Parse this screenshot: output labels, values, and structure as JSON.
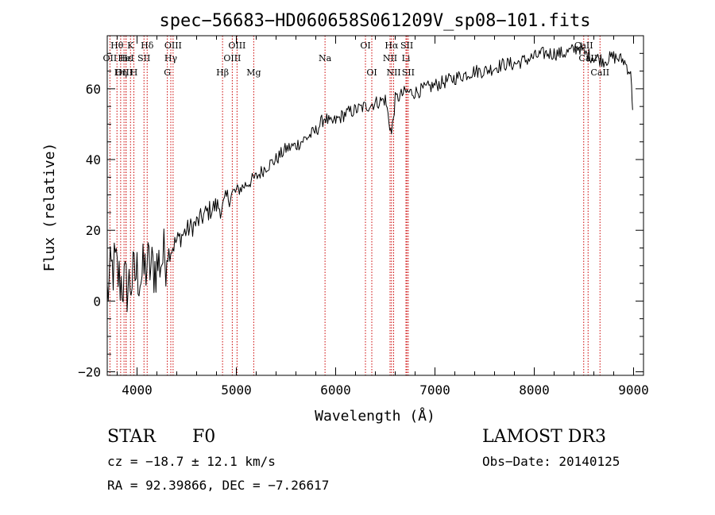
{
  "chart_data": {
    "type": "line",
    "title": "spec−56683−HD060658S061209V_sp08−101.fits",
    "xlabel": "Wavelength (Å)",
    "ylabel": "Flux (relative)",
    "xlim": [
      3700,
      9100
    ],
    "ylim": [
      -21,
      75
    ],
    "xticks": [
      4000,
      5000,
      6000,
      7000,
      8000,
      9000
    ],
    "xtick_labels": [
      "4000",
      "5000",
      "6000",
      "7000",
      "8000",
      "9000"
    ],
    "yticks": [
      -20,
      0,
      20,
      40,
      60
    ],
    "ytick_labels": [
      "−20",
      "0",
      "20",
      "40",
      "60"
    ],
    "grid": false,
    "line_color": "#000000",
    "marker_color": "#cc0000",
    "series": [
      {
        "name": "flux",
        "x": [
          3700,
          3740,
          3780,
          3820,
          3860,
          3900,
          3950,
          4000,
          4050,
          4100,
          4150,
          4200,
          4250,
          4300,
          4350,
          4400,
          4500,
          4600,
          4700,
          4800,
          4860,
          4900,
          5000,
          5100,
          5200,
          5300,
          5400,
          5500,
          5600,
          5700,
          5800,
          5890,
          5950,
          6000,
          6100,
          6200,
          6300,
          6400,
          6500,
          6563,
          6600,
          6700,
          6800,
          6900,
          7000,
          7100,
          7200,
          7300,
          7400,
          7500,
          7600,
          7700,
          7800,
          7900,
          8000,
          8100,
          8200,
          8300,
          8400,
          8450,
          8500,
          8600,
          8700,
          8800,
          8900,
          8960,
          8980,
          8990
        ],
        "y": [
          2,
          8,
          10,
          6,
          5,
          4,
          6,
          8,
          7,
          10,
          9,
          10,
          12,
          13,
          15,
          17,
          20,
          22,
          25,
          27,
          26,
          29,
          31,
          33,
          35,
          38,
          40,
          43,
          44,
          46,
          48,
          52,
          50,
          51,
          53,
          54,
          55,
          56,
          57,
          47,
          57,
          59,
          59,
          60,
          61,
          62,
          63,
          64,
          65,
          65,
          66,
          67,
          67,
          68,
          69,
          70,
          70,
          70,
          71,
          72,
          70,
          69,
          68,
          69,
          68,
          65,
          62,
          54
        ]
      }
    ],
    "annotations": [
      {
        "label": "Hθ",
        "x": 3798,
        "row": 1
      },
      {
        "label": "OII",
        "x": 3727,
        "row": 2
      },
      {
        "label": "OIII",
        "x": 3869,
        "row": 3
      },
      {
        "label": "K",
        "x": 3934,
        "row": 1
      },
      {
        "label": "Hε",
        "x": 3889,
        "row": 2
      },
      {
        "label": "Hη",
        "x": 3835,
        "row": 3
      },
      {
        "label": "HeI",
        "x": 3889,
        "row": 2
      },
      {
        "label": "H",
        "x": 3968,
        "row": 3
      },
      {
        "label": "Hδ",
        "x": 4102,
        "row": 1
      },
      {
        "label": "SII",
        "x": 4070,
        "row": 2
      },
      {
        "label": "OIII",
        "x": 4363,
        "row": 1
      },
      {
        "label": "Hγ",
        "x": 4340,
        "row": 2
      },
      {
        "label": "G",
        "x": 4305,
        "row": 3
      },
      {
        "label": "Hβ",
        "x": 4861,
        "row": 3
      },
      {
        "label": "OIII",
        "x": 4959,
        "row": 2
      },
      {
        "label": "OIII",
        "x": 5007,
        "row": 1
      },
      {
        "label": "Mg",
        "x": 5175,
        "row": 3
      },
      {
        "label": "Na",
        "x": 5893,
        "row": 2
      },
      {
        "label": "OI",
        "x": 6300,
        "row": 1
      },
      {
        "label": "OI",
        "x": 6364,
        "row": 3
      },
      {
        "label": "Hα",
        "x": 6563,
        "row": 1
      },
      {
        "label": "NII",
        "x": 6548,
        "row": 2
      },
      {
        "label": "NII",
        "x": 6584,
        "row": 3
      },
      {
        "label": "SII",
        "x": 6717,
        "row": 1
      },
      {
        "label": "Li",
        "x": 6708,
        "row": 2
      },
      {
        "label": "SII",
        "x": 6731,
        "row": 3
      },
      {
        "label": "CaII",
        "x": 8498,
        "row": 1
      },
      {
        "label": "CaII",
        "x": 8542,
        "row": 2
      },
      {
        "label": "CaII",
        "x": 8662,
        "row": 3
      }
    ]
  },
  "info": {
    "type_label": "STAR",
    "subclass": "F0",
    "survey": "LAMOST DR3",
    "redshift": "cz = −18.7 ± 12.1 km/s",
    "obs_date": "Obs−Date: 20140125",
    "coords": "RA =  92.39866, DEC =  −7.26617"
  }
}
